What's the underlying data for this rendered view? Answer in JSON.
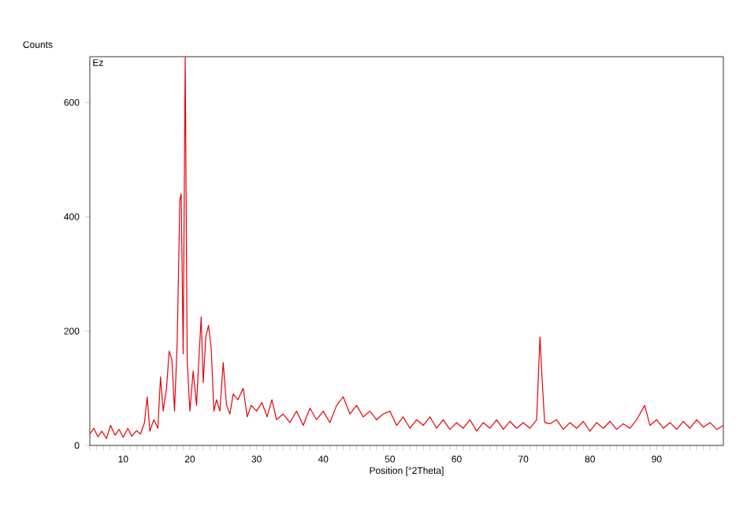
{
  "chart_data": {
    "type": "line",
    "xlabel": "Position [°2Theta]",
    "ylabel": "Counts",
    "annotations": [
      "Ez"
    ],
    "x": [
      5,
      5.6,
      6.2,
      6.8,
      7.5,
      8.1,
      8.8,
      9.4,
      10,
      10.7,
      11.3,
      12,
      12.6,
      13.2,
      13.6,
      14,
      14.6,
      15.2,
      15.6,
      16,
      16.5,
      16.9,
      17.3,
      17.7,
      18.1,
      18.5,
      18.7,
      19,
      19.3,
      19.6,
      20,
      20.5,
      21,
      21.3,
      21.7,
      22,
      22.4,
      22.8,
      23.2,
      23.6,
      24,
      24.5,
      25,
      25.5,
      26,
      26.5,
      27.2,
      28,
      28.6,
      29.2,
      30,
      30.8,
      31.6,
      32.3,
      33,
      34,
      35,
      36,
      37,
      38,
      39,
      40,
      41,
      42,
      43,
      44,
      45,
      46,
      47,
      48,
      49,
      50,
      51,
      52,
      53,
      54,
      55,
      56,
      57,
      58,
      59,
      60,
      61,
      62,
      63,
      64,
      65,
      66,
      67,
      68,
      69,
      70,
      71,
      72,
      72.5,
      72.8,
      73.2,
      74,
      75,
      76,
      77,
      78,
      79,
      80,
      81,
      82,
      83,
      84,
      85,
      86,
      87,
      88.2,
      89,
      90,
      91,
      92,
      93,
      94,
      95,
      96,
      97,
      98,
      99,
      100
    ],
    "series": [
      {
        "color": "#e8000b",
        "values": [
          20,
          30,
          15,
          25,
          12,
          35,
          18,
          28,
          14,
          30,
          16,
          26,
          20,
          40,
          85,
          25,
          45,
          30,
          120,
          60,
          100,
          165,
          150,
          60,
          180,
          430,
          440,
          160,
          680,
          150,
          60,
          130,
          70,
          140,
          225,
          110,
          190,
          210,
          170,
          60,
          80,
          60,
          145,
          70,
          55,
          90,
          80,
          100,
          50,
          70,
          60,
          75,
          50,
          80,
          45,
          55,
          40,
          60,
          35,
          65,
          45,
          60,
          40,
          70,
          85,
          55,
          70,
          50,
          60,
          45,
          55,
          60,
          35,
          50,
          30,
          45,
          35,
          50,
          30,
          45,
          28,
          40,
          30,
          45,
          25,
          40,
          30,
          45,
          28,
          42,
          30,
          40,
          30,
          45,
          190,
          120,
          40,
          38,
          45,
          28,
          40,
          30,
          42,
          25,
          40,
          30,
          42,
          28,
          38,
          30,
          45,
          70,
          35,
          45,
          30,
          40,
          28,
          42,
          30,
          45,
          32,
          40,
          28,
          35
        ]
      }
    ],
    "xlim": [
      5,
      100
    ],
    "ylim": [
      0,
      680
    ],
    "xticks": [
      {
        "value": 5,
        "label": null
      },
      {
        "value": 6,
        "label": null
      },
      {
        "value": 7,
        "label": null
      },
      {
        "value": 8,
        "label": null
      },
      {
        "value": 9,
        "label": null
      },
      10,
      {
        "value": 11,
        "label": null
      },
      {
        "value": 12,
        "label": null
      },
      {
        "value": 13,
        "label": null
      },
      {
        "value": 14,
        "label": null
      },
      {
        "value": 15,
        "label": null
      },
      {
        "value": 16,
        "label": null
      },
      {
        "value": 17,
        "label": null
      },
      {
        "value": 18,
        "label": null
      },
      {
        "value": 19,
        "label": null
      },
      20,
      {
        "value": 21,
        "label": null
      },
      {
        "value": 22,
        "label": null
      },
      {
        "value": 23,
        "label": null
      },
      {
        "value": 24,
        "label": null
      },
      {
        "value": 25,
        "label": null
      },
      {
        "value": 26,
        "label": null
      },
      {
        "value": 27,
        "label": null
      },
      {
        "value": 28,
        "label": null
      },
      {
        "value": 29,
        "label": null
      },
      30,
      {
        "value": 31,
        "label": null
      },
      {
        "value": 32,
        "label": null
      },
      {
        "value": 33,
        "label": null
      },
      {
        "value": 34,
        "label": null
      },
      {
        "value": 35,
        "label": null
      },
      {
        "value": 36,
        "label": null
      },
      {
        "value": 37,
        "label": null
      },
      {
        "value": 38,
        "label": null
      },
      {
        "value": 39,
        "label": null
      },
      40,
      {
        "value": 41,
        "label": null
      },
      {
        "value": 42,
        "label": null
      },
      {
        "value": 43,
        "label": null
      },
      {
        "value": 44,
        "label": null
      },
      {
        "value": 45,
        "label": null
      },
      {
        "value": 46,
        "label": null
      },
      {
        "value": 47,
        "label": null
      },
      {
        "value": 48,
        "label": null
      },
      {
        "value": 49,
        "label": null
      },
      50,
      {
        "value": 51,
        "label": null
      },
      {
        "value": 52,
        "label": null
      },
      {
        "value": 53,
        "label": null
      },
      {
        "value": 54,
        "label": null
      },
      {
        "value": 55,
        "label": null
      },
      {
        "value": 56,
        "label": null
      },
      {
        "value": 57,
        "label": null
      },
      {
        "value": 58,
        "label": null
      },
      {
        "value": 59,
        "label": null
      },
      60,
      {
        "value": 61,
        "label": null
      },
      {
        "value": 62,
        "label": null
      },
      {
        "value": 63,
        "label": null
      },
      {
        "value": 64,
        "label": null
      },
      {
        "value": 65,
        "label": null
      },
      {
        "value": 66,
        "label": null
      },
      {
        "value": 67,
        "label": null
      },
      {
        "value": 68,
        "label": null
      },
      {
        "value": 69,
        "label": null
      },
      70,
      {
        "value": 71,
        "label": null
      },
      {
        "value": 72,
        "label": null
      },
      {
        "value": 73,
        "label": null
      },
      {
        "value": 74,
        "label": null
      },
      {
        "value": 75,
        "label": null
      },
      {
        "value": 76,
        "label": null
      },
      {
        "value": 77,
        "label": null
      },
      {
        "value": 78,
        "label": null
      },
      {
        "value": 79,
        "label": null
      },
      80,
      {
        "value": 81,
        "label": null
      },
      {
        "value": 82,
        "label": null
      },
      {
        "value": 83,
        "label": null
      },
      {
        "value": 84,
        "label": null
      },
      {
        "value": 85,
        "label": null
      },
      {
        "value": 86,
        "label": null
      },
      {
        "value": 87,
        "label": null
      },
      {
        "value": 88,
        "label": null
      },
      {
        "value": 89,
        "label": null
      },
      90,
      {
        "value": 91,
        "label": null
      },
      {
        "value": 92,
        "label": null
      },
      {
        "value": 93,
        "label": null
      },
      {
        "value": 94,
        "label": null
      },
      {
        "value": 95,
        "label": null
      },
      {
        "value": 96,
        "label": null
      },
      {
        "value": 97,
        "label": null
      },
      {
        "value": 98,
        "label": null
      },
      {
        "value": 99,
        "label": null
      }
    ],
    "yticks": [
      0,
      200,
      400,
      600
    ]
  }
}
